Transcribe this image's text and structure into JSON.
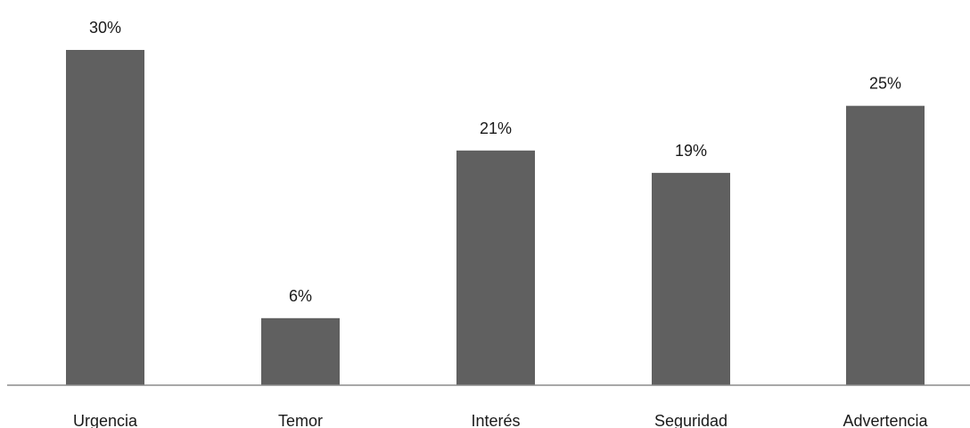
{
  "chart_data": {
    "type": "bar",
    "categories": [
      "Urgencia",
      "Temor",
      "Interés",
      "Seguridad",
      "Advertencia"
    ],
    "values": [
      30,
      6,
      21,
      19,
      25
    ],
    "data_labels": [
      "30%",
      "6%",
      "21%",
      "19%",
      "25%"
    ],
    "title": "",
    "xlabel": "",
    "ylabel": "",
    "ylim": [
      0,
      30
    ],
    "grid": false,
    "legend": "none",
    "bar_color": "#606060",
    "axis_color": "#8c8c8c"
  }
}
